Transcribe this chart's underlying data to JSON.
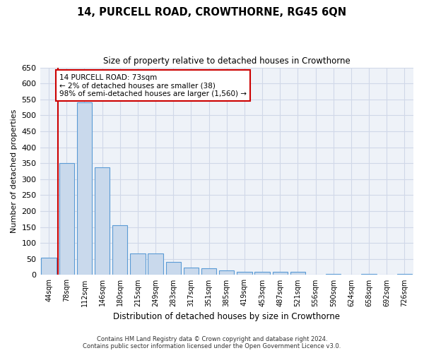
{
  "title": "14, PURCELL ROAD, CROWTHORNE, RG45 6QN",
  "subtitle": "Size of property relative to detached houses in Crowthorne",
  "xlabel": "Distribution of detached houses by size in Crowthorne",
  "ylabel": "Number of detached properties",
  "categories": [
    "44sqm",
    "78sqm",
    "112sqm",
    "146sqm",
    "180sqm",
    "215sqm",
    "249sqm",
    "283sqm",
    "317sqm",
    "351sqm",
    "385sqm",
    "419sqm",
    "453sqm",
    "487sqm",
    "521sqm",
    "556sqm",
    "590sqm",
    "624sqm",
    "658sqm",
    "692sqm",
    "726sqm"
  ],
  "values": [
    55,
    350,
    540,
    337,
    155,
    67,
    67,
    40,
    22,
    20,
    15,
    10,
    10,
    10,
    10,
    0,
    4,
    0,
    4,
    0,
    4
  ],
  "bar_color": "#c9d9ec",
  "bar_edge_color": "#5b9bd5",
  "grid_color": "#d0d8e8",
  "background_color": "#eef2f8",
  "annotation_title": "14 PURCELL ROAD: 73sqm",
  "annotation_line1": "← 2% of detached houses are smaller (38)",
  "annotation_line2": "98% of semi-detached houses are larger (1,560) →",
  "annotation_box_color": "#ffffff",
  "annotation_border_color": "#cc0000",
  "vline_color": "#cc0000",
  "ylim": [
    0,
    650
  ],
  "yticks": [
    0,
    50,
    100,
    150,
    200,
    250,
    300,
    350,
    400,
    450,
    500,
    550,
    600,
    650
  ],
  "footer_line1": "Contains HM Land Registry data © Crown copyright and database right 2024.",
  "footer_line2": "Contains public sector information licensed under the Open Government Licence v3.0."
}
